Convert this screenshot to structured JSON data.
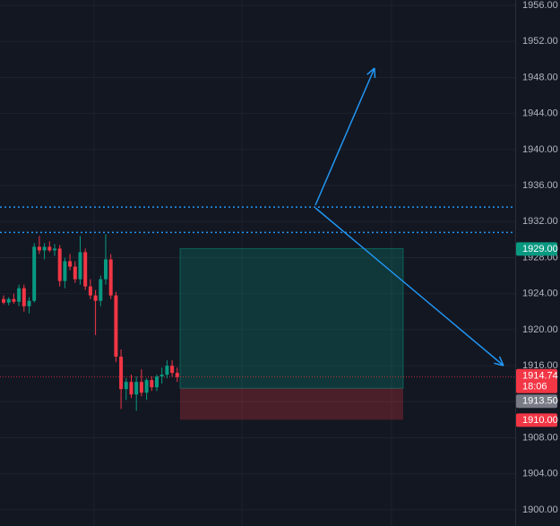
{
  "chart_data": {
    "type": "candlestick",
    "up_color": "#089981",
    "down_color": "#f23645",
    "open": [
      1923.4,
      1923.0,
      1923.4,
      1923.1,
      1924.6,
      1922.6,
      1923.2,
      1929.2,
      1928.8,
      1929.2,
      1928.8,
      1929.0,
      1925.4,
      1927.6,
      1927.0,
      1925.6,
      1928.6,
      1924.8,
      1923.8,
      1923.2,
      1925.6,
      1927.8,
      1923.8,
      1917.0,
      1913.4,
      1914.2,
      1912.8,
      1914.2,
      1913.0,
      1914.4,
      1913.6,
      1914.8,
      1915.0,
      1916.0,
      1915.2
    ],
    "high": [
      1923.8,
      1923.6,
      1924.0,
      1925.0,
      1925.0,
      1923.6,
      1929.6,
      1930.4,
      1929.6,
      1929.8,
      1929.5,
      1929.4,
      1928.0,
      1928.4,
      1927.6,
      1930.4,
      1929.0,
      1925.6,
      1924.4,
      1926.0,
      1930.6,
      1928.4,
      1924.2,
      1917.8,
      1914.6,
      1915.0,
      1914.8,
      1915.6,
      1914.6,
      1914.8,
      1915.0,
      1915.8,
      1916.6,
      1916.6,
      1915.8
    ],
    "low": [
      1922.8,
      1922.7,
      1922.9,
      1922.6,
      1922.0,
      1921.8,
      1923.0,
      1928.4,
      1927.8,
      1928.6,
      1928.2,
      1924.8,
      1924.6,
      1926.6,
      1925.2,
      1925.0,
      1924.4,
      1923.4,
      1919.4,
      1922.6,
      1925.0,
      1923.4,
      1916.4,
      1911.2,
      1912.2,
      1912.4,
      1911.0,
      1912.6,
      1912.2,
      1913.2,
      1913.2,
      1914.0,
      1914.6,
      1914.8,
      1914.2
    ],
    "close": [
      1923.0,
      1923.4,
      1923.1,
      1924.6,
      1922.6,
      1923.2,
      1929.2,
      1928.8,
      1929.2,
      1928.8,
      1929.0,
      1925.4,
      1927.6,
      1927.0,
      1925.6,
      1928.6,
      1924.8,
      1923.8,
      1923.2,
      1925.6,
      1927.8,
      1923.8,
      1917.0,
      1913.4,
      1914.2,
      1912.8,
      1914.2,
      1913.0,
      1914.4,
      1913.6,
      1914.8,
      1915.0,
      1916.0,
      1915.2,
      1914.74
    ],
    "ylim": [
      1898.2,
      1956.6
    ],
    "yticks": [
      {
        "value": 1900,
        "label": "1900.00"
      },
      {
        "value": 1904,
        "label": "1904.00"
      },
      {
        "value": 1908,
        "label": "1908.00"
      },
      {
        "value": 1912,
        "label": "1912.00"
      },
      {
        "value": 1916,
        "label": "1916.00"
      },
      {
        "value": 1920,
        "label": "1920.00"
      },
      {
        "value": 1924,
        "label": "1924.00"
      },
      {
        "value": 1928,
        "label": "1928.00"
      },
      {
        "value": 1932,
        "label": "1932.00"
      },
      {
        "value": 1936,
        "label": "1936.00"
      },
      {
        "value": 1940,
        "label": "1940.00"
      },
      {
        "value": 1944,
        "label": "1944.00"
      },
      {
        "value": 1948,
        "label": "1948.00"
      },
      {
        "value": 1952,
        "label": "1952.00"
      },
      {
        "value": 1956,
        "label": "1956.00"
      }
    ],
    "grid": true,
    "horizontal_lines": [
      {
        "value": 1933.6,
        "color": "#2196f3"
      },
      {
        "value": 1930.8,
        "color": "#2196f3"
      }
    ],
    "position": {
      "target": 1929,
      "entry": 1913.5,
      "stop": 1910
    },
    "last_price": {
      "value": 1914.74,
      "label": "1914.74",
      "countdown": "18:06",
      "color": "#f23645"
    },
    "price_labels": [
      {
        "value": 1929,
        "label": "1929.00",
        "color": "#089981"
      },
      {
        "value": 1913.5,
        "label": "1913.50",
        "color": "#787b86"
      },
      {
        "value": 1910,
        "label": "1910.00",
        "color": "#f23645"
      }
    ]
  }
}
